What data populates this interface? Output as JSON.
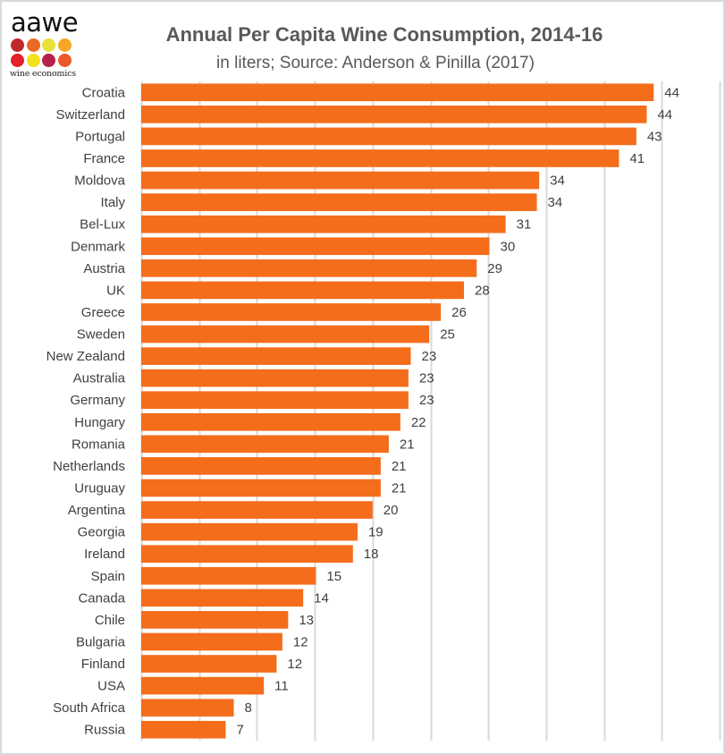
{
  "logo": {
    "wordmark": "aawe",
    "tagline": "wine economics",
    "dot_colors": [
      "#c0282a",
      "#ea6a23",
      "#e6e23a",
      "#f5a623",
      "#e3202c",
      "#f5e11c",
      "#b5224a",
      "#ea5a2a"
    ]
  },
  "chart_data": {
    "type": "bar",
    "orientation": "horizontal",
    "title": "Annual Per Capita Wine Consumption, 2014-16",
    "subtitle": "in liters; Source: Anderson & Pinilla (2017)",
    "xlabel": "",
    "ylabel": "",
    "xlim": [
      0,
      50
    ],
    "grid": true,
    "grid_step": 5,
    "legend": "none",
    "bar_color": "#f46d1b",
    "categories": [
      "Croatia",
      "Switzerland",
      "Portugal",
      "France",
      "Moldova",
      "Italy",
      "Bel-Lux",
      "Denmark",
      "Austria",
      "UK",
      "Greece",
      "Sweden",
      "New Zealand",
      "Australia",
      "Germany",
      "Hungary",
      "Romania",
      "Netherlands",
      "Uruguay",
      "Argentina",
      "Georgia",
      "Ireland",
      "Spain",
      "Canada",
      "Chile",
      "Bulgaria",
      "Finland",
      "USA",
      "South Africa",
      "Russia"
    ],
    "values": [
      44.3,
      43.7,
      42.8,
      41.3,
      34.4,
      34.2,
      31.5,
      30.1,
      29.0,
      27.9,
      25.9,
      24.9,
      23.3,
      23.1,
      23.1,
      22.4,
      21.4,
      20.7,
      20.7,
      20.0,
      18.7,
      18.3,
      15.1,
      14.0,
      12.7,
      12.2,
      11.7,
      10.6,
      8.0,
      7.3
    ],
    "data_labels": [
      "44",
      "44",
      "43",
      "41",
      "34",
      "34",
      "31",
      "30",
      "29",
      "28",
      "26",
      "25",
      "23",
      "23",
      "23",
      "22",
      "21",
      "21",
      "21",
      "20",
      "19",
      "18",
      "15",
      "14",
      "13",
      "12",
      "12",
      "11",
      "8",
      "7"
    ]
  }
}
